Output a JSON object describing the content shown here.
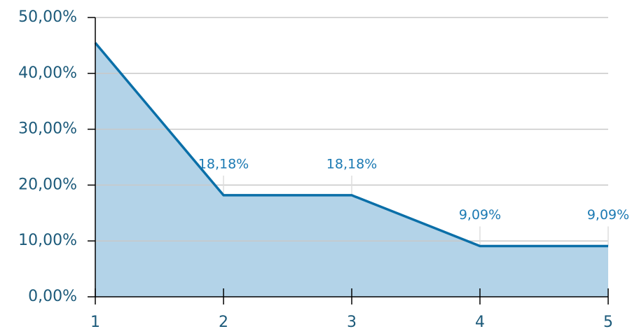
{
  "chart_data": {
    "type": "area",
    "x": [
      1,
      2,
      3,
      4,
      5
    ],
    "series": [
      {
        "color": "#0a6fa8",
        "fill": "#b3d3e8",
        "values": [
          45.45,
          18.18,
          18.18,
          9.09,
          9.09
        ],
        "value_labels": [
          null,
          "18,18%",
          "18,18%",
          "9,09%",
          "9,09%"
        ]
      }
    ],
    "xlim": [
      1,
      5
    ],
    "xticks": [
      1,
      2,
      3,
      4,
      5
    ],
    "ylim": [
      0,
      50
    ],
    "yticks": [
      {
        "value": 0,
        "label": "0,00%"
      },
      {
        "value": 10,
        "label": "10,00%"
      },
      {
        "value": 20,
        "label": "20,00%"
      },
      {
        "value": 30,
        "label": "30,00%"
      },
      {
        "value": 40,
        "label": "40,00%"
      },
      {
        "value": 50,
        "label": "50,00%"
      }
    ],
    "grid": true
  }
}
